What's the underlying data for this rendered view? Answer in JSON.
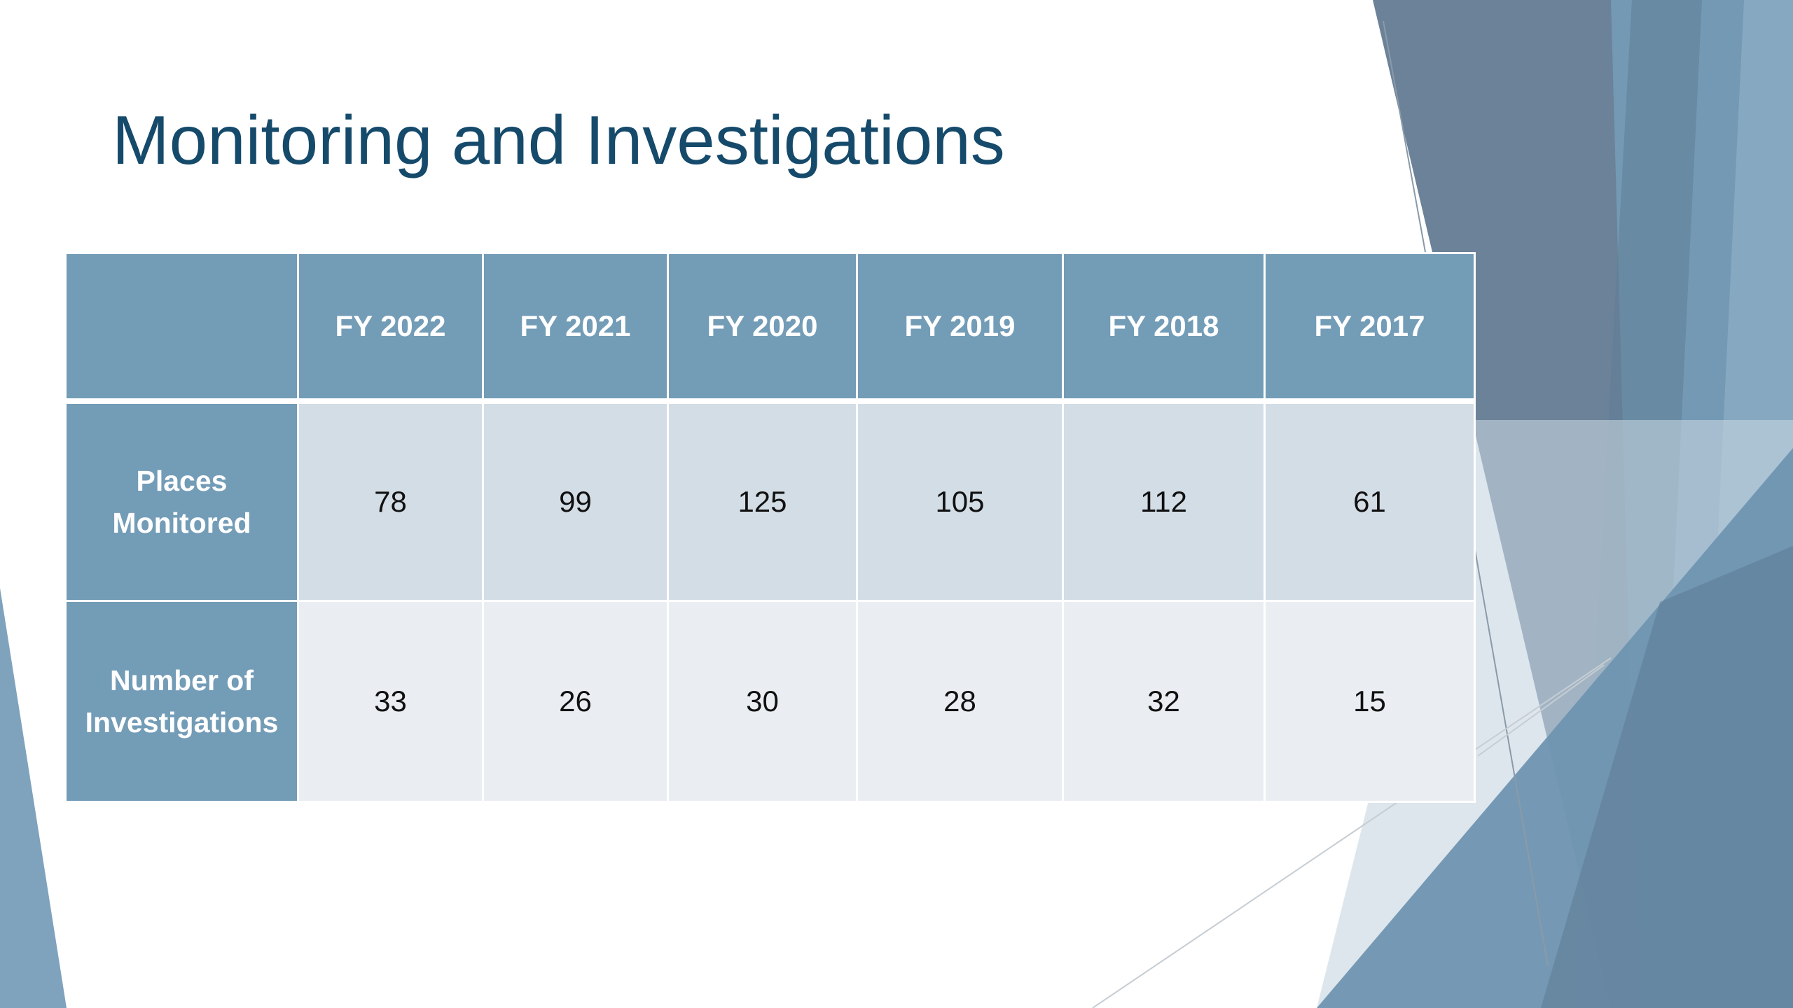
{
  "slide": {
    "title": "Monitoring and Investigations"
  },
  "table": {
    "corner": "",
    "columns": [
      "FY 2022",
      "FY 2021",
      "FY 2020",
      "FY 2019",
      "FY 2018",
      "FY 2017"
    ],
    "rows": [
      {
        "label": "Places Monitored",
        "values": [
          "78",
          "99",
          "125",
          "105",
          "112",
          "61"
        ]
      },
      {
        "label": "Number of Investigations",
        "values": [
          "33",
          "26",
          "30",
          "28",
          "32",
          "15"
        ]
      }
    ]
  },
  "colors": {
    "title": "#154a6b",
    "header_fill": "#739cb7",
    "row_1_fill": "#d3dde6",
    "row_2_fill": "#eaeef2",
    "decor_dark": "#5f7d96",
    "decor_mid": "#7fa2bd",
    "decor_light": "#c7d6e1"
  }
}
